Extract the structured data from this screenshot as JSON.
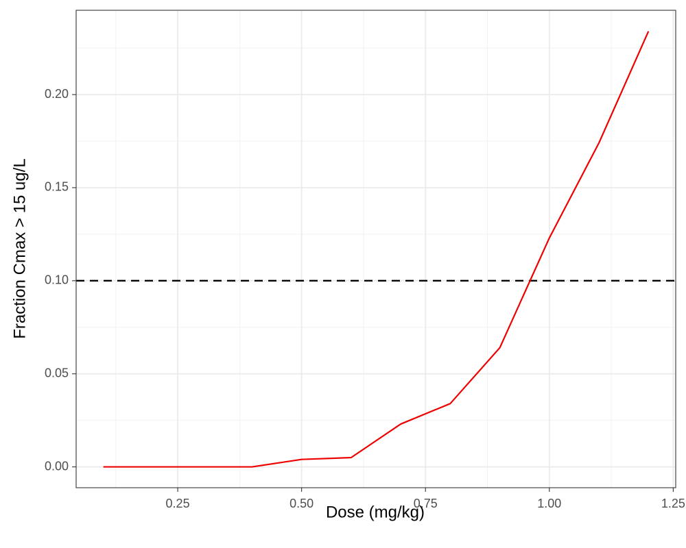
{
  "chart_data": {
    "type": "line",
    "title": "",
    "xlabel": "Dose (mg/kg)",
    "ylabel": "Fraction Cmax > 15 ug/L",
    "xlim": [
      0.045,
      1.255
    ],
    "ylim": [
      -0.0112,
      0.2453
    ],
    "x_ticks": [
      0.25,
      0.5,
      0.75,
      1.0,
      1.25
    ],
    "x_tick_labels": [
      "0.25",
      "0.50",
      "0.75",
      "1.00",
      "1.25"
    ],
    "y_ticks": [
      0.0,
      0.05,
      0.1,
      0.15,
      0.2
    ],
    "y_tick_labels": [
      "0.00",
      "0.05",
      "0.10",
      "0.15",
      "0.20"
    ],
    "grid": true,
    "legend": "none",
    "series": [
      {
        "color": "#ee0000",
        "x": [
          0.1,
          0.2,
          0.3,
          0.4,
          0.5,
          0.6,
          0.7,
          0.8,
          0.9,
          1.0,
          1.1,
          1.2
        ],
        "y": [
          0.0,
          0.0,
          0.0,
          0.0,
          0.004,
          0.005,
          0.023,
          0.034,
          0.064,
          0.123,
          0.174,
          0.234
        ]
      }
    ],
    "reference_line": {
      "orientation": "horizontal",
      "y": 0.1,
      "style": "dashed",
      "color": "#000000"
    },
    "colors": {
      "panel_border": "#333333",
      "grid_major": "#ebebeb",
      "grid_minor": "#f2f2f2",
      "tick_mark": "#333333"
    }
  }
}
